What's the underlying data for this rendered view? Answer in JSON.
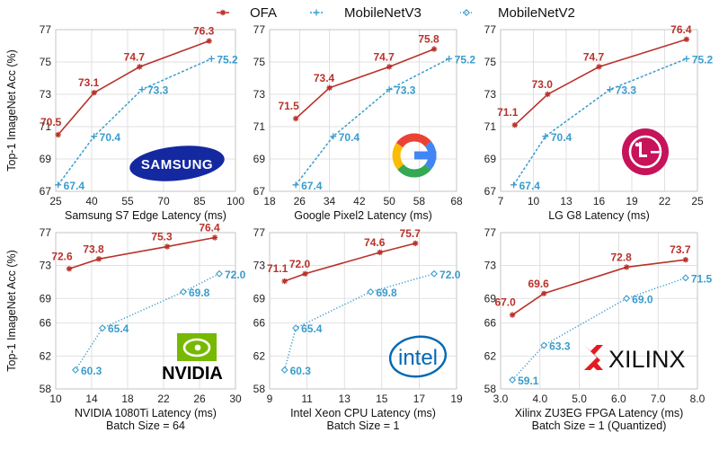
{
  "legend": [
    {
      "name": "OFA",
      "marker": "star",
      "color": "#b8322a"
    },
    {
      "name": "MobileNetV3",
      "marker": "plus",
      "color": "#3a9ccc"
    },
    {
      "name": "MobileNetV2",
      "marker": "diamond",
      "color": "#3a9ccc"
    }
  ],
  "colors": {
    "ofa": "#b8322a",
    "mbv": "#3a9ccc"
  },
  "ylabel": "Top-1 ImageNet Acc (%)",
  "logos": {
    "samsung": "SAMSUNG",
    "nvidia": "NVIDIA",
    "intel": "intel",
    "xilinx": "XILINX"
  },
  "chart_data": [
    {
      "type": "line",
      "xlabel": "Samsung S7 Edge Latency (ms)",
      "xlim": [
        25,
        100
      ],
      "ylim": [
        67,
        77
      ],
      "xticks": [
        25,
        40,
        55,
        70,
        85,
        100
      ],
      "yticks": [
        67,
        69,
        71,
        73,
        75,
        77
      ],
      "logo": "samsung",
      "series": [
        {
          "name": "OFA",
          "x": [
            26,
            41,
            60,
            89
          ],
          "y": [
            70.5,
            73.1,
            74.7,
            76.3
          ],
          "labels": [
            "70.5",
            "73.1",
            "74.7",
            "76.3"
          ]
        },
        {
          "name": "MobileNetV3",
          "x": [
            26,
            41,
            61,
            90
          ],
          "y": [
            67.4,
            70.4,
            73.3,
            75.2
          ],
          "labels": [
            "67.4",
            "70.4",
            "73.3",
            "75.2"
          ]
        }
      ]
    },
    {
      "type": "line",
      "xlabel": "Google Pixel2 Latency (ms)",
      "xlim": [
        18,
        68
      ],
      "ylim": [
        67,
        77
      ],
      "xticks": [
        18,
        26,
        34,
        42,
        50,
        58,
        68
      ],
      "yticks": [
        67,
        69,
        71,
        73,
        75,
        77
      ],
      "logo": "google",
      "series": [
        {
          "name": "OFA",
          "x": [
            25,
            34,
            50,
            62
          ],
          "y": [
            71.5,
            73.4,
            74.7,
            75.8
          ],
          "labels": [
            "71.5",
            "73.4",
            "74.7",
            "75.8"
          ]
        },
        {
          "name": "MobileNetV3",
          "x": [
            25,
            35,
            50,
            66
          ],
          "y": [
            67.4,
            70.4,
            73.3,
            75.2
          ],
          "labels": [
            "67.4",
            "70.4",
            "73.3",
            "75.2"
          ]
        }
      ]
    },
    {
      "type": "line",
      "xlabel": "LG G8 Latency (ms)",
      "xlim": [
        7,
        25
      ],
      "ylim": [
        67,
        77
      ],
      "xticks": [
        7,
        10,
        13,
        16,
        19,
        22,
        25
      ],
      "yticks": [
        67,
        69,
        71,
        73,
        75,
        77
      ],
      "logo": "lg",
      "series": [
        {
          "name": "OFA",
          "x": [
            8.3,
            11.3,
            16,
            24
          ],
          "y": [
            71.1,
            73.0,
            74.7,
            76.4
          ],
          "labels": [
            "71.1",
            "73.0",
            "74.7",
            "76.4"
          ]
        },
        {
          "name": "MobileNetV3",
          "x": [
            8.2,
            11.1,
            17,
            24
          ],
          "y": [
            67.4,
            70.4,
            73.3,
            75.2
          ],
          "labels": [
            "67.4",
            "70.4",
            "73.3",
            "75.2"
          ]
        }
      ]
    },
    {
      "type": "line",
      "xlabel": "NVIDIA 1080Ti Latency (ms)",
      "xlabel2": "Batch Size = 64",
      "xlim": [
        10,
        30
      ],
      "ylim": [
        58,
        77
      ],
      "xticks": [
        10,
        14,
        18,
        22,
        26,
        30
      ],
      "yticks": [
        58,
        62,
        66,
        69,
        73,
        77
      ],
      "logo": "nvidia",
      "series": [
        {
          "name": "OFA",
          "x": [
            11.5,
            14.8,
            22.4,
            27.7
          ],
          "y": [
            72.6,
            73.8,
            75.3,
            76.4
          ],
          "labels": [
            "72.6",
            "73.8",
            "75.3",
            "76.4"
          ]
        },
        {
          "name": "MobileNetV2",
          "x": [
            12.2,
            15.2,
            24.2,
            28.2
          ],
          "y": [
            60.3,
            65.4,
            69.8,
            72.0
          ],
          "labels": [
            "60.3",
            "65.4",
            "69.8",
            "72.0"
          ]
        }
      ]
    },
    {
      "type": "line",
      "xlabel": "Intel Xeon CPU Latency (ms)",
      "xlabel2": "Batch Size = 1",
      "xlim": [
        9,
        19
      ],
      "ylim": [
        58,
        77
      ],
      "xticks": [
        9,
        11,
        13,
        15,
        17,
        19
      ],
      "yticks": [
        58,
        62,
        66,
        69,
        73,
        77
      ],
      "logo": "intel",
      "series": [
        {
          "name": "OFA",
          "x": [
            9.8,
            10.9,
            14.9,
            16.8
          ],
          "y": [
            71.1,
            72.0,
            74.6,
            75.7
          ],
          "labels": [
            "71.1",
            "72.0",
            "74.6",
            "75.7"
          ]
        },
        {
          "name": "MobileNetV2",
          "x": [
            9.8,
            10.4,
            14.4,
            17.8
          ],
          "y": [
            60.3,
            65.4,
            69.8,
            72.0
          ],
          "labels": [
            "60.3",
            "65.4",
            "69.8",
            "72.0"
          ]
        }
      ]
    },
    {
      "type": "line",
      "xlabel": "Xilinx ZU3EG FPGA Latency (ms)",
      "xlabel2": "Batch Size = 1 (Quantized)",
      "xlim": [
        3.0,
        8.0
      ],
      "ylim": [
        58,
        77
      ],
      "xticks": [
        3.0,
        4.0,
        5.0,
        6.0,
        7.0,
        8.0
      ],
      "yticks": [
        58,
        62,
        66,
        69,
        73,
        77
      ],
      "logo": "xilinx",
      "series": [
        {
          "name": "OFA",
          "x": [
            3.3,
            4.1,
            6.2,
            7.7
          ],
          "y": [
            67.0,
            69.6,
            72.8,
            73.7
          ],
          "labels": [
            "67.0",
            "69.6",
            "72.8",
            "73.7"
          ]
        },
        {
          "name": "MobileNetV2",
          "x": [
            3.3,
            4.1,
            6.2,
            7.7
          ],
          "y": [
            59.1,
            63.3,
            69.0,
            71.5
          ],
          "labels": [
            "59.1",
            "63.3",
            "69.0",
            "71.5"
          ]
        }
      ]
    }
  ]
}
